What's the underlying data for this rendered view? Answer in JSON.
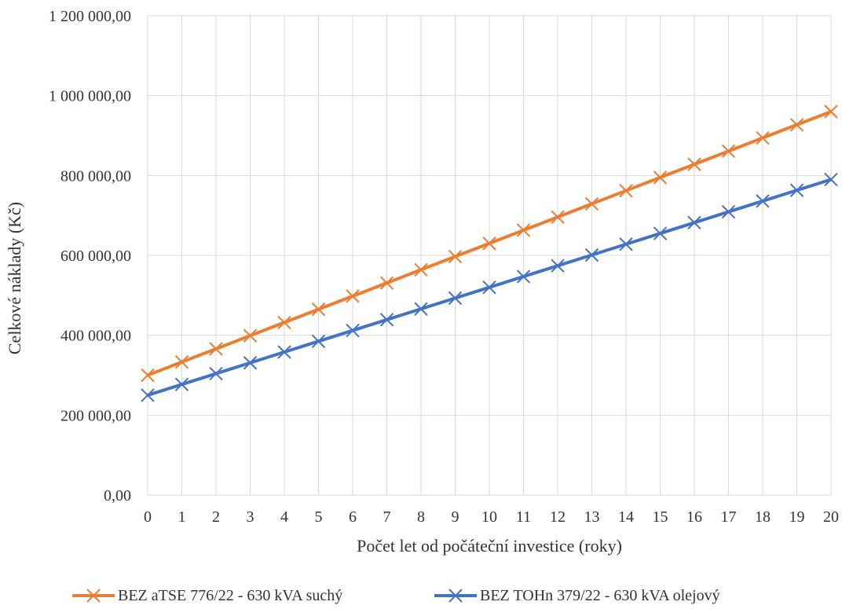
{
  "chart_data": {
    "type": "line",
    "title": "",
    "xlabel": "Počet let od počáteční investice (roky)",
    "ylabel": "Celkové náklady (Kč)",
    "x": [
      0,
      1,
      2,
      3,
      4,
      5,
      6,
      7,
      8,
      9,
      10,
      11,
      12,
      13,
      14,
      15,
      16,
      17,
      18,
      19,
      20
    ],
    "xlim": [
      0,
      20
    ],
    "ylim": [
      0,
      1200000
    ],
    "y_ticks": [
      0,
      200000,
      400000,
      600000,
      800000,
      1000000,
      1200000
    ],
    "y_tick_labels": [
      "0,00",
      "200 000,00",
      "400 000,00",
      "600 000,00",
      "800 000,00",
      "1 000 000,00",
      "1 200 000,00"
    ],
    "x_tick_labels": [
      "0",
      "1",
      "2",
      "3",
      "4",
      "5",
      "6",
      "7",
      "8",
      "9",
      "10",
      "11",
      "12",
      "13",
      "14",
      "15",
      "16",
      "17",
      "18",
      "19",
      "20"
    ],
    "grid": true,
    "legend_position": "bottom",
    "marker": "x",
    "series": [
      {
        "name": "BEZ aTSE 776/22 - 630 kVA suchý",
        "color": "#ED7D31",
        "values": [
          300000,
          333000,
          366000,
          399000,
          432000,
          465000,
          498000,
          531000,
          564000,
          597000,
          630000,
          663000,
          696000,
          729000,
          762000,
          795000,
          828000,
          861000,
          894000,
          927000,
          960000
        ]
      },
      {
        "name": "BEZ TOHn 379/22 - 630 kVA olejový",
        "color": "#4472C4",
        "values": [
          250000,
          277000,
          304000,
          331000,
          358000,
          385000,
          412000,
          439000,
          466000,
          493000,
          520000,
          547000,
          574000,
          601000,
          628000,
          655000,
          682000,
          709000,
          736000,
          763000,
          790000
        ]
      }
    ]
  }
}
